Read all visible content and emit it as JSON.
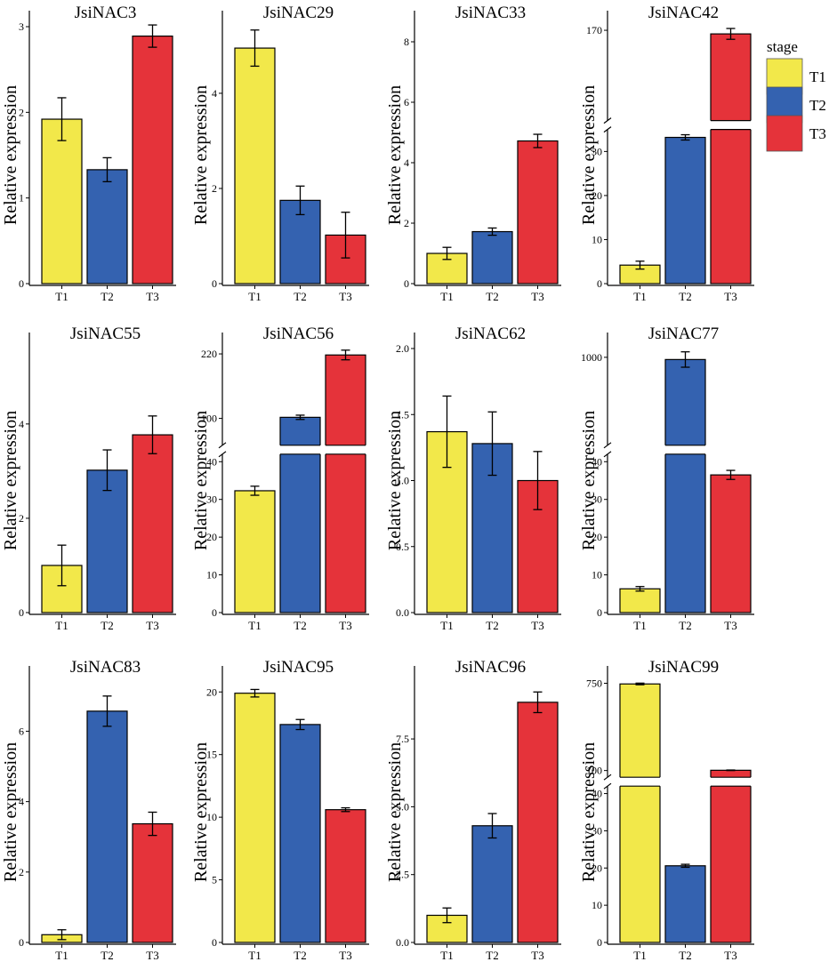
{
  "legend": {
    "title": "stage",
    "items": [
      {
        "label": "T1",
        "color": "#F2E84A"
      },
      {
        "label": "T2",
        "color": "#3462B0"
      },
      {
        "label": "T3",
        "color": "#E5333A"
      }
    ]
  },
  "chart_data": [
    {
      "type": "bar",
      "title": "JsiNAC3",
      "ylabel": "Relative expression",
      "categories": [
        "T1",
        "T2",
        "T3"
      ],
      "values": [
        1.92,
        1.33,
        2.89
      ],
      "errors": [
        0.25,
        0.14,
        0.13
      ],
      "ylim": [
        0,
        3
      ],
      "yticks": [
        0,
        1,
        2,
        3
      ],
      "tick_labels": [
        "0",
        "1",
        "2",
        "3"
      ],
      "break": null
    },
    {
      "type": "bar",
      "title": "JsiNAC29",
      "ylabel": "Relative expression",
      "categories": [
        "T1",
        "T2",
        "T3"
      ],
      "values": [
        4.95,
        1.75,
        1.02
      ],
      "errors": [
        0.38,
        0.3,
        0.48
      ],
      "ylim": [
        0,
        5.4
      ],
      "yticks": [
        0,
        2,
        4
      ],
      "tick_labels": [
        "0",
        "2",
        "4"
      ],
      "break": null
    },
    {
      "type": "bar",
      "title": "JsiNAC33",
      "ylabel": "Relative expression",
      "categories": [
        "T1",
        "T2",
        "T3"
      ],
      "values": [
        1.0,
        1.72,
        4.72
      ],
      "errors": [
        0.2,
        0.12,
        0.22
      ],
      "ylim": [
        0,
        8.5
      ],
      "yticks": [
        0,
        2,
        4,
        6,
        8
      ],
      "tick_labels": [
        "0",
        "2",
        "4",
        "6",
        "8"
      ],
      "break": null
    },
    {
      "type": "bar",
      "title": "JsiNAC42",
      "ylabel": "Relative expression",
      "categories": [
        "T1",
        "T2",
        "T3"
      ],
      "values": [
        4.2,
        33.2,
        168
      ],
      "errors": [
        0.9,
        0.6,
        3
      ],
      "break": {
        "lower_max": 35,
        "upper_min": 120,
        "upper_max": 172,
        "lower_ticks": [
          0,
          10,
          20,
          30
        ],
        "upper_ticks": [
          170
        ]
      },
      "tick_labels": [
        "0",
        "10",
        "20",
        "30",
        "170"
      ]
    },
    {
      "type": "bar",
      "title": "JsiNAC55",
      "ylabel": "Relative expression",
      "categories": [
        "T1",
        "T2",
        "T3"
      ],
      "values": [
        1.0,
        3.02,
        3.77
      ],
      "errors": [
        0.43,
        0.43,
        0.4
      ],
      "ylim": [
        0,
        5.6
      ],
      "yticks": [
        0,
        2,
        4
      ],
      "tick_labels": [
        "0",
        "2",
        "4"
      ],
      "break": null
    },
    {
      "type": "bar",
      "title": "JsiNAC56",
      "ylabel": "Relative expression",
      "categories": [
        "T1",
        "T2",
        "T3"
      ],
      "values": [
        32.3,
        102,
        218
      ],
      "errors": [
        1.2,
        4,
        9
      ],
      "break": {
        "lower_max": 42,
        "upper_min": 50,
        "upper_max": 230,
        "lower_ticks": [
          0,
          10,
          20,
          30,
          40
        ],
        "upper_ticks": [
          100,
          220
        ]
      },
      "tick_labels": [
        "0",
        "10",
        "20",
        "30",
        "40",
        "100",
        "220"
      ]
    },
    {
      "type": "bar",
      "title": "JsiNAC62",
      "ylabel": "Relative expression",
      "categories": [
        "T1",
        "T2",
        "T3"
      ],
      "values": [
        1.37,
        1.28,
        1.0
      ],
      "errors": [
        0.27,
        0.24,
        0.22
      ],
      "ylim": [
        0,
        2.0
      ],
      "yticks": [
        0,
        0.5,
        1.0,
        1.5,
        2.0
      ],
      "tick_labels": [
        "0.0",
        "0.5",
        "1.0",
        "1.5",
        "2.0"
      ],
      "break": null
    },
    {
      "type": "bar",
      "title": "JsiNAC77",
      "ylabel": "Relative expression",
      "categories": [
        "T1",
        "T2",
        "T3"
      ],
      "values": [
        6.3,
        980,
        36.5
      ],
      "errors": [
        0.6,
        70,
        1.2
      ],
      "break": {
        "lower_max": 42,
        "upper_min": 200,
        "upper_max": 1080,
        "lower_ticks": [
          0,
          10,
          20,
          30,
          40
        ],
        "upper_ticks": [
          1000
        ]
      },
      "tick_labels": [
        "0",
        "10",
        "20",
        "30",
        "40",
        "1000"
      ]
    },
    {
      "type": "bar",
      "title": "JsiNAC83",
      "ylabel": "Relative expression",
      "categories": [
        "T1",
        "T2",
        "T3"
      ],
      "values": [
        0.22,
        6.57,
        3.37
      ],
      "errors": [
        0.14,
        0.43,
        0.33
      ],
      "ylim": [
        0,
        7.4
      ],
      "yticks": [
        0,
        2,
        4,
        6
      ],
      "tick_labels": [
        "0",
        "2",
        "4",
        "6"
      ],
      "break": null
    },
    {
      "type": "bar",
      "title": "JsiNAC95",
      "ylabel": "Relative expression",
      "categories": [
        "T1",
        "T2",
        "T3"
      ],
      "values": [
        19.9,
        17.4,
        10.6
      ],
      "errors": [
        0.3,
        0.4,
        0.15
      ],
      "ylim": [
        0,
        20.8
      ],
      "yticks": [
        0,
        5,
        10,
        15,
        20
      ],
      "tick_labels": [
        "0",
        "5",
        "10",
        "15",
        "20"
      ],
      "break": null
    },
    {
      "type": "bar",
      "title": "JsiNAC96",
      "ylabel": "Relative expression",
      "categories": [
        "T1",
        "T2",
        "T3"
      ],
      "values": [
        1.0,
        4.3,
        8.85
      ],
      "errors": [
        0.27,
        0.45,
        0.38
      ],
      "ylim": [
        0,
        9.6
      ],
      "yticks": [
        0,
        2.5,
        5.0,
        7.5
      ],
      "tick_labels": [
        "0.0",
        "2.5",
        "5.0",
        "7.5"
      ],
      "break": null
    },
    {
      "type": "bar",
      "title": "JsiNAC99",
      "ylabel": "Relative expression",
      "categories": [
        "T1",
        "T2",
        "T3"
      ],
      "values": [
        745,
        20.6,
        102
      ],
      "errors": [
        6,
        0.4,
        2
      ],
      "break": {
        "lower_max": 42,
        "upper_min": 50,
        "upper_max": 760,
        "lower_ticks": [
          0,
          10,
          20,
          30,
          40
        ],
        "upper_ticks": [
          100,
          750
        ]
      },
      "tick_labels": [
        "0",
        "10",
        "20",
        "30",
        "40",
        "100",
        "750"
      ]
    }
  ]
}
